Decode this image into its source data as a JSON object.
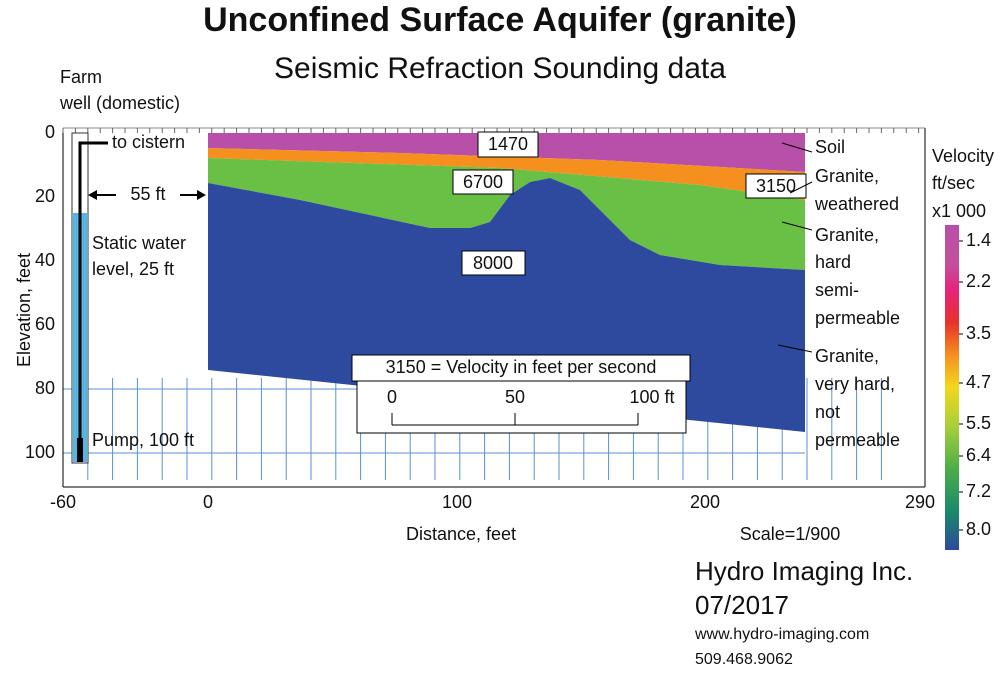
{
  "title": "Unconfined Surface Aquifer (granite)",
  "subtitle": "Seismic Refraction Sounding data",
  "axes": {
    "y_label": "Elevation, feet",
    "x_label": "Distance, feet",
    "y_ticks": [
      "0",
      "20",
      "40",
      "60",
      "80",
      "100"
    ],
    "x_ticks": [
      "-60",
      "0",
      "100",
      "200",
      "290"
    ],
    "scale": "Scale=1/900"
  },
  "well": {
    "label": [
      "Farm",
      "well (domestic)"
    ],
    "cistern": "to cistern",
    "distance": "55 ft",
    "static": [
      "Static water",
      "level, 25 ft"
    ],
    "pump": "Pump, 100 ft"
  },
  "layers": [
    {
      "velocity": "1470",
      "name": [
        "Soil"
      ]
    },
    {
      "velocity": "3150",
      "name": [
        "Granite,",
        "weathered"
      ]
    },
    {
      "velocity": "6700",
      "name": [
        "Granite,",
        "hard",
        "semi-",
        "permeable"
      ]
    },
    {
      "velocity": "8000",
      "name": [
        "Granite,",
        "very hard,",
        "not",
        "permeable"
      ]
    }
  ],
  "legend_box": {
    "text": "3150 = Velocity in feet per second",
    "scale_ticks": [
      "0",
      "50",
      "100 ft"
    ]
  },
  "colorbar": {
    "title": [
      "Velocity",
      "ft/sec",
      "x1 000"
    ],
    "labels": [
      "1.4",
      "2.2",
      "3.5",
      "4.7",
      "5.5",
      "6.4",
      "7.2",
      "8.0"
    ]
  },
  "footer": {
    "company": "Hydro Imaging Inc.",
    "date": "07/2017",
    "web": "www.hydro-imaging.com",
    "phone": "509.468.9062"
  }
}
